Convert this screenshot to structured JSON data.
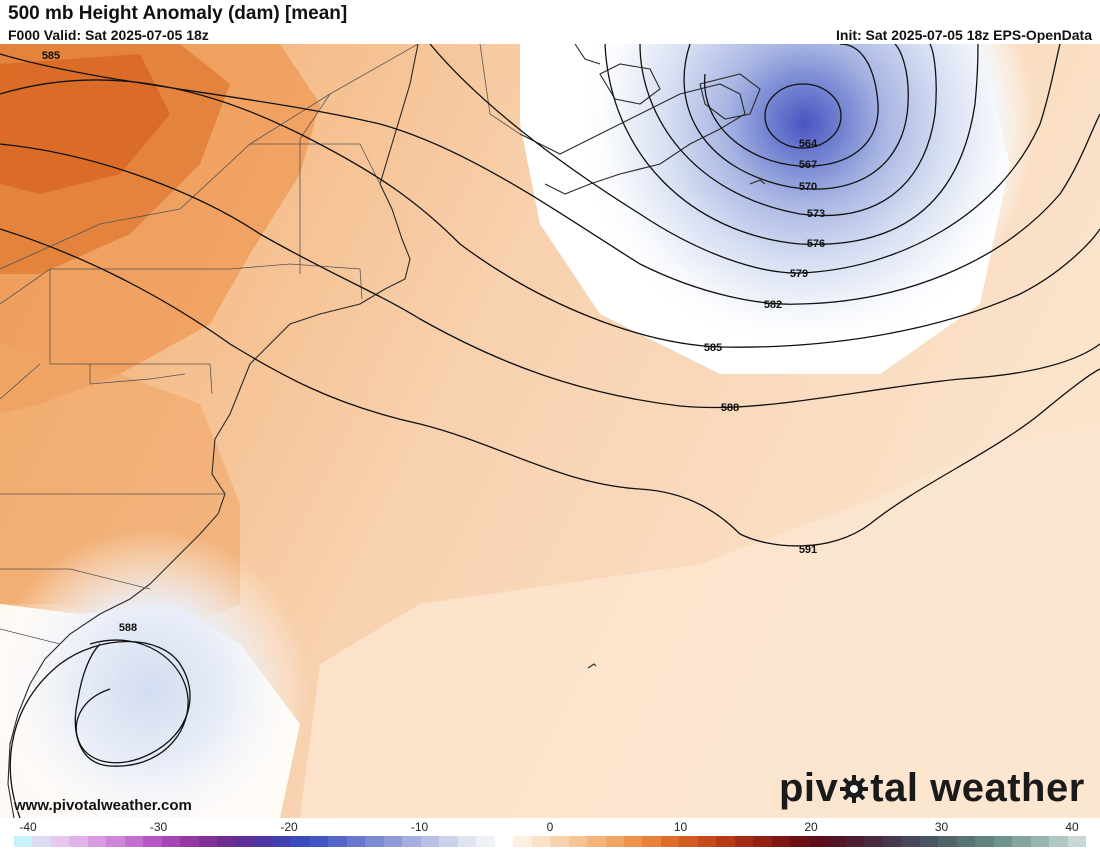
{
  "header": {
    "title": "500 mb Height Anomaly (dam) [mean]",
    "valid": "F000 Valid: Sat 2025-07-05 18z",
    "init": "Init: Sat 2025-07-05 18z EPS-OpenData"
  },
  "contours": {
    "c585_top": "585",
    "c564": "564",
    "c567": "567",
    "c570": "570",
    "c573": "573",
    "c576": "576",
    "c579": "579",
    "c582": "582",
    "c585": "585",
    "c588": "588",
    "c591": "591",
    "c588_south": "588"
  },
  "footer": {
    "url": "www.pivotalweather.com",
    "logo_a": "piv",
    "logo_b": "tal weather"
  },
  "colorbar": {
    "ticks": [
      "-40",
      "-30",
      "-20",
      "-10",
      "0",
      "10",
      "20",
      "30",
      "40"
    ],
    "colors": [
      "#c6f3fb",
      "#dcdcf4",
      "#e6c8ee",
      "#e2b2ea",
      "#d99ce3",
      "#cf85da",
      "#c36ed0",
      "#b658c4",
      "#a545b6",
      "#933aa7",
      "#82309a",
      "#6f2d92",
      "#5f2f9a",
      "#5037a6",
      "#4241b2",
      "#3a4bbd",
      "#4257c3",
      "#5466c8",
      "#6878ce",
      "#7c8ad4",
      "#909cda",
      "#a4aee0",
      "#b8c0e6",
      "#ccd2ec",
      "#dfe4f2",
      "#eef1f7",
      "#ffffff",
      "#fdf0e2",
      "#fbe2c8",
      "#f9d3ae",
      "#f7c494",
      "#f5b57a",
      "#f2a462",
      "#ee934c",
      "#e8813a",
      "#df6e2c",
      "#d45c22",
      "#c64a1c",
      "#b63a18",
      "#a42c16",
      "#922015",
      "#801614",
      "#6e0f14",
      "#5e0d1a",
      "#551326",
      "#4f1d33",
      "#4a2a40",
      "#47384e",
      "#47465b",
      "#4a5563",
      "#4f646b",
      "#567474",
      "#618480",
      "#6f948e",
      "#82a59f",
      "#98b6b1",
      "#afc7c3",
      "#c7d8d6"
    ]
  }
}
